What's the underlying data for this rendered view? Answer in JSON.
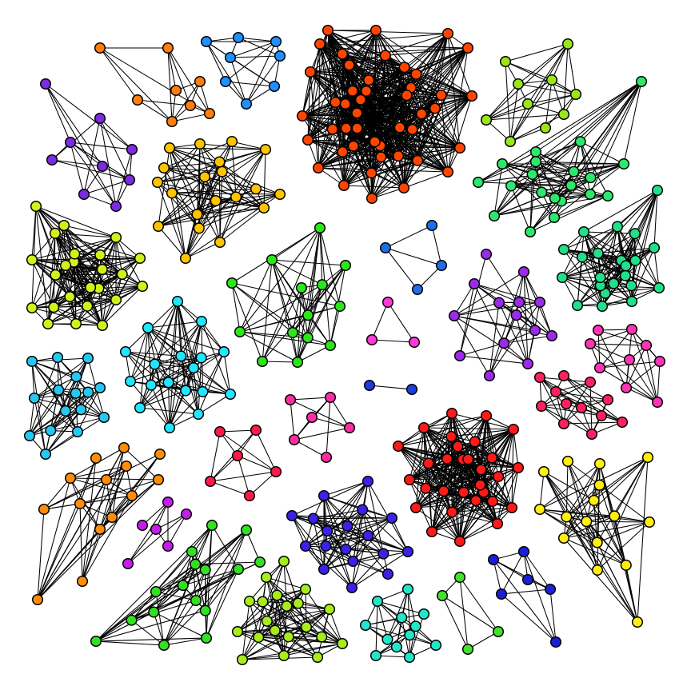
{
  "diagram": {
    "type": "graph",
    "node_outline_color": "#000000",
    "edge_color": "#000000",
    "clusters": [
      {
        "id": "c01",
        "color": "#ff4500",
        "nodes": 45,
        "connectivity": "near-complete"
      },
      {
        "id": "c02",
        "color": "#ff7f0e",
        "nodes": 8,
        "connectivity": "dense"
      },
      {
        "id": "c03",
        "color": "#1e90ff",
        "nodes": 8,
        "connectivity": "dense"
      },
      {
        "id": "c04",
        "color": "#7b2be2",
        "nodes": 9,
        "connectivity": "dense"
      },
      {
        "id": "c05",
        "color": "#ffc400",
        "nodes": 20,
        "connectivity": "dense"
      },
      {
        "id": "c06",
        "color": "#9be619",
        "nodes": 10,
        "connectivity": "dense"
      },
      {
        "id": "c07",
        "color": "#2ee86c",
        "nodes": 20,
        "connectivity": "dense"
      },
      {
        "id": "c08",
        "color": "#d4f01a",
        "nodes": 24,
        "connectivity": "near-complete"
      },
      {
        "id": "c09",
        "color": "#22e08a",
        "nodes": 22,
        "connectivity": "dense"
      },
      {
        "id": "c10",
        "color": "#2ce61c",
        "nodes": 14,
        "connectivity": "dense"
      },
      {
        "id": "c11",
        "color": "#1e6fe6",
        "nodes": 4,
        "connectivity": "cycle"
      },
      {
        "id": "c12",
        "color": "#9a2be8",
        "nodes": 14,
        "connectivity": "dense"
      },
      {
        "id": "c13",
        "color": "#22e6ff",
        "nodes": 18,
        "connectivity": "dense"
      },
      {
        "id": "c14",
        "color": "#26c8f0",
        "nodes": 16,
        "connectivity": "dense"
      },
      {
        "id": "c15",
        "color": "#ff3ad6",
        "nodes": 3,
        "connectivity": "triangle"
      },
      {
        "id": "c16",
        "color": "#ff33b4",
        "nodes": 9,
        "connectivity": "dense"
      },
      {
        "id": "c17",
        "color": "#1e3cdc",
        "nodes": 2,
        "connectivity": "single-edge"
      },
      {
        "id": "c18",
        "color": "#ff2060",
        "nodes": 12,
        "connectivity": "dense"
      },
      {
        "id": "c19",
        "color": "#ff2da0",
        "nodes": 6,
        "connectivity": "dense"
      },
      {
        "id": "c20",
        "color": "#ff1a4a",
        "nodes": 6,
        "connectivity": "dense"
      },
      {
        "id": "c21",
        "color": "#ff1a1a",
        "nodes": 30,
        "connectivity": "near-complete"
      },
      {
        "id": "c22",
        "color": "#ff8c0a",
        "nodes": 14,
        "connectivity": "dense"
      },
      {
        "id": "c23",
        "color": "#ffee10",
        "nodes": 16,
        "connectivity": "dense"
      },
      {
        "id": "c24",
        "color": "#c41ee8",
        "nodes": 6,
        "connectivity": "dense"
      },
      {
        "id": "c25",
        "color": "#3a22e8",
        "nodes": 18,
        "connectivity": "dense"
      },
      {
        "id": "c26",
        "color": "#34e022",
        "nodes": 16,
        "connectivity": "dense"
      },
      {
        "id": "c27",
        "color": "#a8ec1c",
        "nodes": 20,
        "connectivity": "dense"
      },
      {
        "id": "c28",
        "color": "#22e6c8",
        "nodes": 12,
        "connectivity": "dense"
      },
      {
        "id": "c29",
        "color": "#44e030",
        "nodes": 4,
        "connectivity": "sparse"
      },
      {
        "id": "c30",
        "color": "#1a20d8",
        "nodes": 6,
        "connectivity": "dense"
      }
    ]
  }
}
